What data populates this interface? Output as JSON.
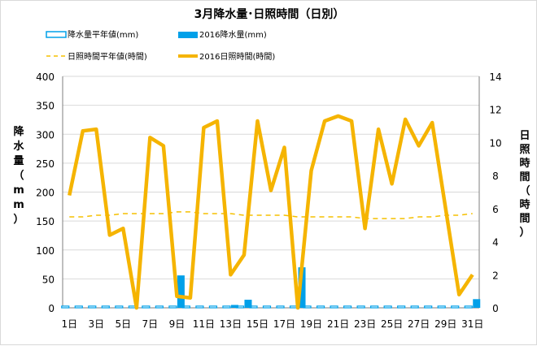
{
  "chart_data": {
    "type": "bar+line",
    "title": "3月降水量･日照時間（日別）",
    "ylabel_left": "降水量（mm）",
    "ylabel_right": "日照時間（時間）",
    "ylim_left": [
      0,
      400
    ],
    "ylim_right": [
      0,
      14
    ],
    "left_ticks": [
      "0",
      "50",
      "100",
      "150",
      "200",
      "250",
      "300",
      "350",
      "400"
    ],
    "right_ticks": [
      "0",
      "2",
      "4",
      "6",
      "8",
      "10",
      "12",
      "14"
    ],
    "x_tick_labels": [
      "1日",
      "3日",
      "5日",
      "7日",
      "9日",
      "11日",
      "13日",
      "15日",
      "17日",
      "19日",
      "21日",
      "23日",
      "25日",
      "27日",
      "29日",
      "31日"
    ],
    "days": [
      1,
      2,
      3,
      4,
      5,
      6,
      7,
      8,
      9,
      10,
      11,
      12,
      13,
      14,
      15,
      16,
      17,
      18,
      19,
      20,
      21,
      22,
      23,
      24,
      25,
      26,
      27,
      28,
      29,
      30,
      31
    ],
    "legend": [
      {
        "key": "rain_normal",
        "label": "降水量平年値(mm)"
      },
      {
        "key": "rain_2016",
        "label": "2016降水量(mm)"
      },
      {
        "key": "sun_normal",
        "label": "日照時間平年値(時間)"
      },
      {
        "key": "sun_2016",
        "label": "2016日照時間(時間)"
      }
    ],
    "series": [
      {
        "name": "降水量平年値(mm)",
        "axis": "left",
        "kind": "bar-outline",
        "values": [
          3,
          3,
          3,
          3,
          3,
          3,
          3,
          3,
          3,
          3,
          3,
          3,
          3,
          3,
          3,
          3,
          3,
          3,
          3,
          3,
          3,
          3,
          3,
          3,
          3,
          3,
          3,
          3,
          3,
          3,
          3
        ]
      },
      {
        "name": "2016降水量(mm)",
        "axis": "left",
        "kind": "bar",
        "values": [
          0,
          0,
          0,
          0,
          0,
          0,
          0,
          0,
          56,
          0,
          0,
          0,
          5,
          14,
          0,
          0,
          0,
          70,
          0,
          0,
          0,
          0,
          0,
          0,
          0,
          0,
          0,
          0,
          0,
          0,
          15
        ]
      },
      {
        "name": "日照時間平年値(時間)",
        "axis": "right",
        "kind": "dashed-line",
        "values": [
          5.5,
          5.5,
          5.6,
          5.6,
          5.7,
          5.7,
          5.7,
          5.7,
          5.8,
          5.8,
          5.7,
          5.7,
          5.7,
          5.6,
          5.6,
          5.6,
          5.6,
          5.5,
          5.5,
          5.5,
          5.5,
          5.5,
          5.4,
          5.4,
          5.4,
          5.4,
          5.5,
          5.5,
          5.6,
          5.6,
          5.7
        ]
      },
      {
        "name": "2016日照時間(時間)",
        "axis": "right",
        "kind": "line",
        "values": [
          6.8,
          10.7,
          10.8,
          4.4,
          4.8,
          0.0,
          10.3,
          9.8,
          0.7,
          0.6,
          10.9,
          11.3,
          2.0,
          3.2,
          11.3,
          7.1,
          9.7,
          0.0,
          8.3,
          11.3,
          11.6,
          11.3,
          4.8,
          10.8,
          7.5,
          11.4,
          9.8,
          11.2,
          6.0,
          0.8,
          2.0
        ]
      }
    ],
    "colors": {
      "rain_normal_stroke": "#00A0E9",
      "rain_2016": "#00A0E9",
      "sun_normal": "#F5C000",
      "sun_2016": "#F5B400",
      "grid": "#d9d9d9",
      "axis": "#7f7f7f"
    }
  }
}
